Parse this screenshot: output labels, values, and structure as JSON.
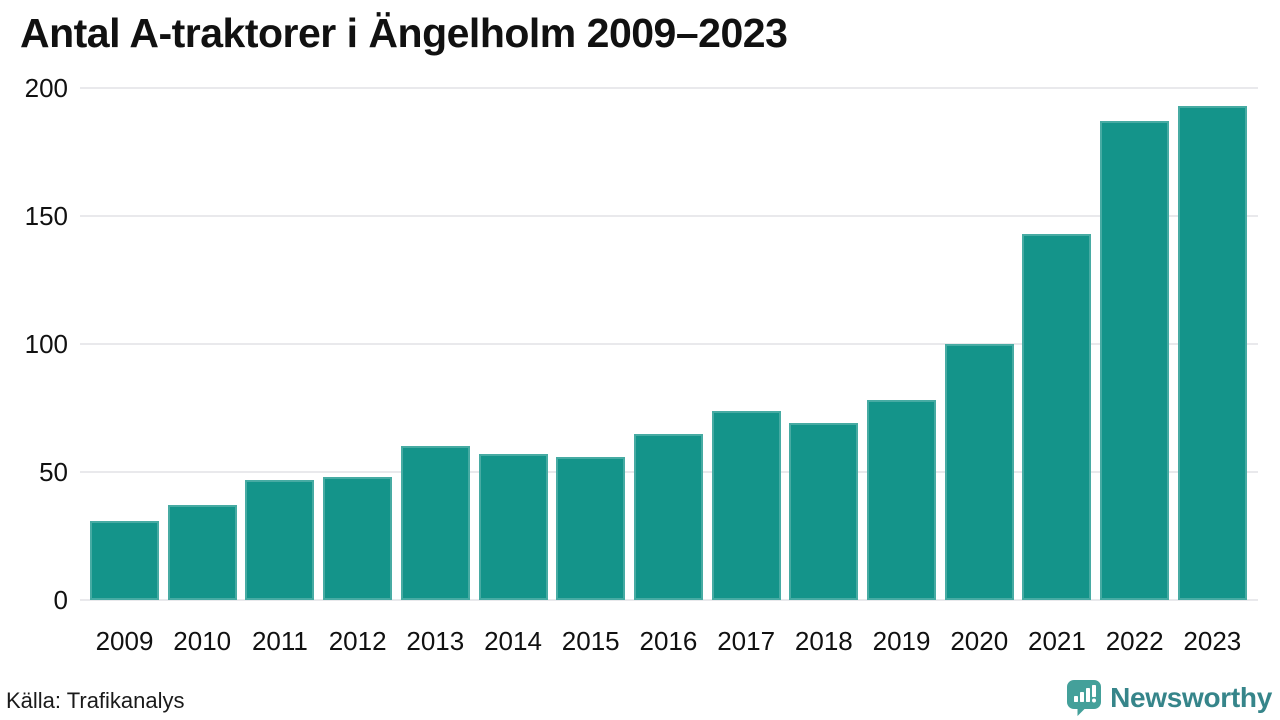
{
  "title": "Antal A-traktorer i Ängelholm 2009–2023",
  "footer": {
    "source": "Källa: Trafikanalys",
    "logo_text": "Newsworthy"
  },
  "colors": {
    "bar": "#14948a",
    "gridline": "#e9e9ec",
    "title_text": "#111111",
    "logo_icon": "#44a09a",
    "logo_text": "#36858a"
  },
  "chart_data": {
    "type": "bar",
    "title": "Antal A-traktorer i Ängelholm 2009–2023",
    "categories": [
      "2009",
      "2010",
      "2011",
      "2012",
      "2013",
      "2014",
      "2015",
      "2016",
      "2017",
      "2018",
      "2019",
      "2020",
      "2021",
      "2022",
      "2023"
    ],
    "values": [
      31,
      37,
      47,
      48,
      60,
      57,
      56,
      65,
      74,
      69,
      78,
      100,
      143,
      187,
      193
    ],
    "xlabel": "",
    "ylabel": "",
    "ylim": [
      0,
      200
    ],
    "yticks": [
      0,
      50,
      100,
      150,
      200
    ],
    "grid": true,
    "legend": false,
    "source": "Källa: Trafikanalys"
  }
}
